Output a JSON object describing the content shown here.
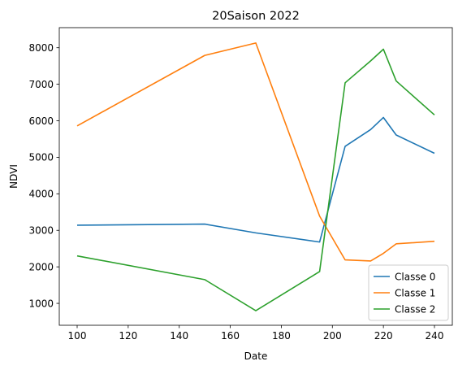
{
  "chart_data": {
    "type": "line",
    "title": "20Saison 2022",
    "xlabel": "Date",
    "ylabel": "NDVI",
    "xlim": [
      93,
      247
    ],
    "ylim": [
      400,
      8550
    ],
    "xticks": [
      100,
      120,
      140,
      160,
      180,
      200,
      220,
      240
    ],
    "yticks": [
      1000,
      2000,
      3000,
      4000,
      5000,
      6000,
      7000,
      8000
    ],
    "grid": false,
    "legend": "lower right",
    "series": [
      {
        "name": "Classe 0",
        "color": "#1f77b4",
        "x": [
          100,
          150,
          170,
          195,
          205,
          215,
          220,
          225,
          240
        ],
        "y": [
          3140,
          3170,
          2930,
          2680,
          5300,
          5760,
          6090,
          5610,
          5110
        ]
      },
      {
        "name": "Classe 1",
        "color": "#ff7f0e",
        "x": [
          100,
          150,
          170,
          195,
          205,
          215,
          220,
          225,
          240
        ],
        "y": [
          5860,
          7790,
          8130,
          3390,
          2190,
          2160,
          2370,
          2630,
          2700
        ]
      },
      {
        "name": "Classe 2",
        "color": "#2ca02c",
        "x": [
          100,
          150,
          170,
          195,
          205,
          215,
          220,
          225,
          240
        ],
        "y": [
          2300,
          1650,
          800,
          1870,
          7040,
          7640,
          7960,
          7090,
          6160
        ]
      }
    ]
  }
}
